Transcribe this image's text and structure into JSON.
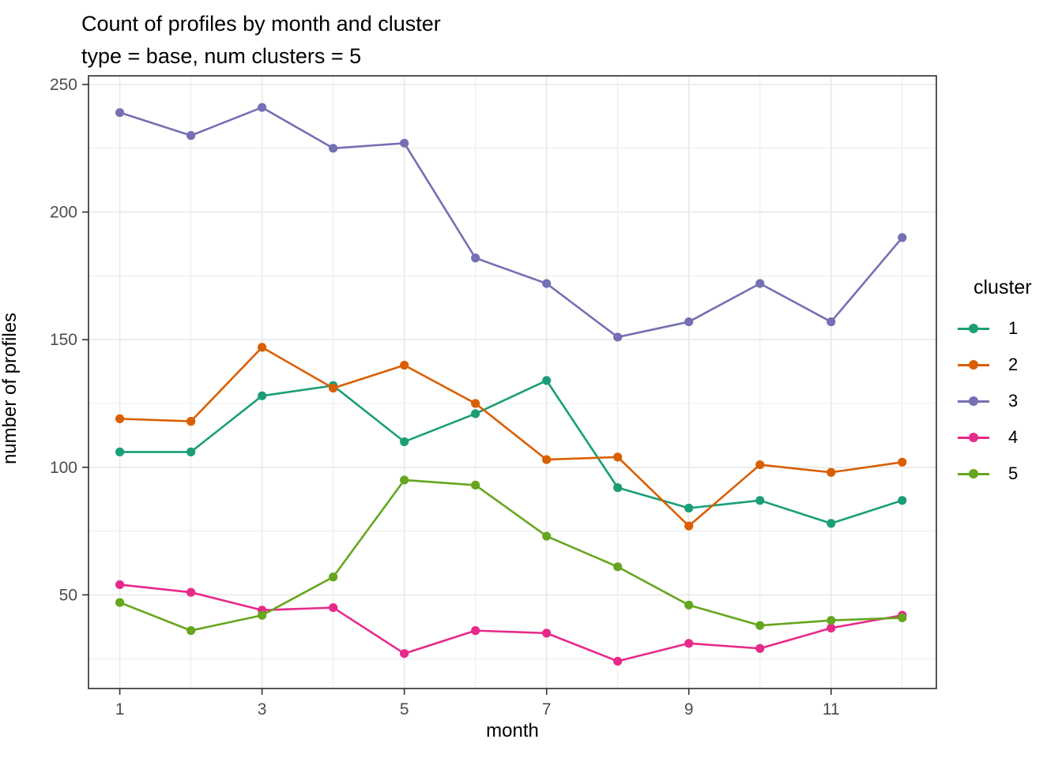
{
  "title": {
    "line1": "Count of profiles by month and cluster",
    "line2": "type = base, num clusters = 5"
  },
  "axes": {
    "x_label": "month",
    "y_label": "number of profiles"
  },
  "legend": {
    "title": "cluster",
    "entries": [
      {
        "label": "1",
        "color": "#1B9E77"
      },
      {
        "label": "2",
        "color": "#D95F02"
      },
      {
        "label": "3",
        "color": "#7570B3"
      },
      {
        "label": "4",
        "color": "#E7298A"
      },
      {
        "label": "5",
        "color": "#66A61E"
      }
    ]
  },
  "chart_data": {
    "type": "line",
    "title": "Count of profiles by month and cluster",
    "subtitle": "type = base, num clusters = 5",
    "xlabel": "month",
    "ylabel": "number of profiles",
    "x": [
      1,
      2,
      3,
      4,
      5,
      6,
      7,
      8,
      9,
      10,
      11,
      12
    ],
    "series": [
      {
        "name": "1",
        "color": "#1B9E77",
        "values": [
          106,
          106,
          128,
          132,
          110,
          121,
          134,
          92,
          84,
          87,
          78,
          87
        ]
      },
      {
        "name": "2",
        "color": "#D95F02",
        "values": [
          119,
          118,
          147,
          131,
          140,
          125,
          103,
          104,
          77,
          101,
          98,
          102
        ]
      },
      {
        "name": "3",
        "color": "#7570B3",
        "values": [
          239,
          230,
          241,
          225,
          227,
          182,
          172,
          151,
          157,
          172,
          157,
          190
        ]
      },
      {
        "name": "4",
        "color": "#E7298A",
        "values": [
          54,
          51,
          44,
          45,
          27,
          36,
          35,
          24,
          31,
          29,
          37,
          42
        ]
      },
      {
        "name": "5",
        "color": "#66A61E",
        "values": [
          47,
          36,
          42,
          57,
          95,
          93,
          73,
          61,
          46,
          38,
          40,
          41
        ]
      }
    ],
    "x_range": [
      0.56,
      12.48
    ],
    "y_range": [
      13.3,
      253.4
    ],
    "x_major_ticks": [
      1,
      3,
      5,
      7,
      9,
      11
    ],
    "x_minor_ticks": [
      2,
      4,
      6,
      8,
      10,
      12
    ],
    "x_tick_labels": [
      "1",
      "3",
      "5",
      "7",
      "9",
      "11"
    ],
    "y_major_ticks": [
      50,
      100,
      150,
      200,
      250
    ],
    "y_minor_ticks": [
      25,
      75,
      125,
      175,
      225
    ],
    "y_tick_labels": [
      "50",
      "100",
      "150",
      "200",
      "250"
    ],
    "grid": true,
    "legend_position": "right",
    "panel_border_color": "#2b2b2b",
    "grid_color": "#e8e8e8",
    "tick_color": "#333333",
    "tick_label_color": "#4d4d4d"
  }
}
